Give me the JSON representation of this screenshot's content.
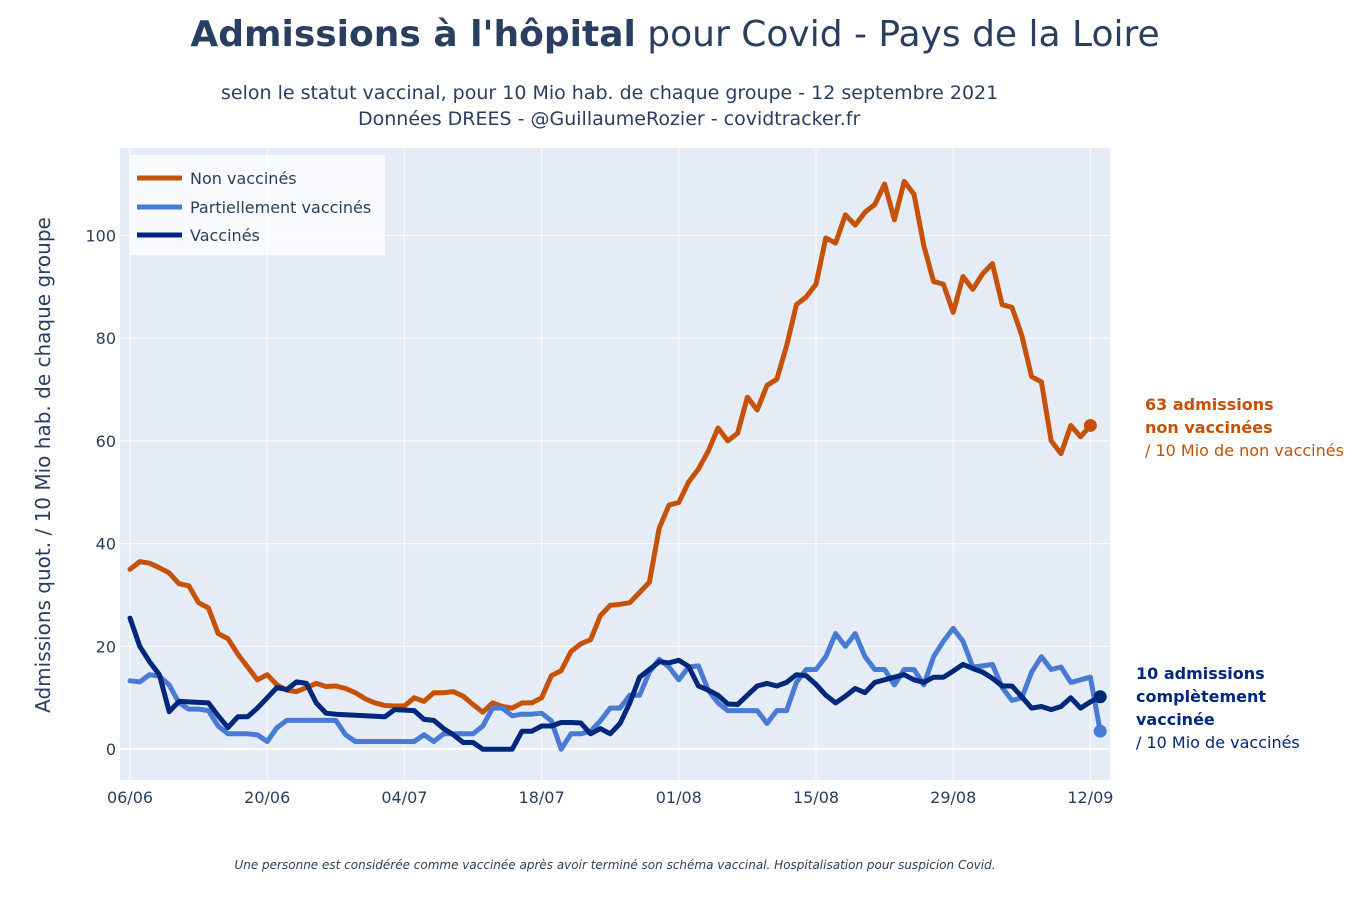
{
  "header": {
    "title_bold": "Admissions à l'hôpital",
    "title_rest": " pour Covid - Pays de la Loire",
    "subtitle_line1": "selon le statut vaccinal, pour 10 Mio hab. de chaque groupe - 12 septembre 2021",
    "subtitle_line2": "Données DREES - @GuillaumeRozier - covidtracker.fr"
  },
  "footnote": "Une personne est considérée comme vaccinée après avoir terminé son schéma vaccinal. Hospitalisation pour suspicion Covid.",
  "annotations": {
    "unvax_line1": "63 admissions",
    "unvax_line2": "non vaccinées",
    "unvax_line3": "/ 10 Mio de non vaccinés",
    "vax_line1": "10 admissions",
    "vax_line2": "complètement vaccinée",
    "vax_line3": "/ 10 Mio de vaccinés"
  },
  "colors": {
    "unvaccinated": "#c65108",
    "partial": "#4a7bd4",
    "vaccinated": "#00287a",
    "plot_bg": "#e5ecf6"
  },
  "chart_data": {
    "type": "line",
    "title": "Admissions à l'hôpital pour Covid - Pays de la Loire",
    "ylabel": "Admissions quot. / 10 Mio hab. de chaque groupe",
    "xlabel": "",
    "x_start": "2021-06-06",
    "x_tick_labels": [
      "06/06",
      "20/06",
      "04/07",
      "18/07",
      "01/08",
      "15/08",
      "29/08",
      "12/09"
    ],
    "y_ticks": [
      0,
      20,
      40,
      60,
      80,
      100
    ],
    "ylim": [
      -6,
      117
    ],
    "grid": true,
    "legend_position": "top-left",
    "series": [
      {
        "name": "Non vaccinés",
        "color": "#c65108",
        "values": [
          35,
          36.5,
          36.2,
          35.3,
          34.3,
          32.2,
          31.8,
          28.5,
          27.5,
          22.5,
          21.5,
          18.5,
          16,
          13.5,
          14.5,
          12.5,
          11.5,
          11.2,
          12,
          12.8,
          12.2,
          12.3,
          11.8,
          11,
          9.8,
          9,
          8.5,
          8.4,
          8.4,
          10,
          9.3,
          11,
          11,
          11.2,
          10.3,
          8.7,
          7.2,
          9,
          8.3,
          8,
          9,
          9,
          10,
          14.3,
          15.3,
          19,
          20.5,
          21.3,
          26,
          28,
          28.2,
          28.5,
          30.5,
          32.5,
          43,
          47.5,
          48,
          52,
          54.5,
          58,
          62.5,
          60,
          61.5,
          68.5,
          66,
          70.8,
          72,
          78.5,
          86.5,
          88,
          90.5,
          99.5,
          98.5,
          104,
          102,
          104.5,
          106,
          110,
          103,
          110.5,
          108,
          98,
          91,
          90.5,
          85,
          92,
          89.5,
          92.5,
          94.5,
          86.5,
          86,
          80.5,
          72.5,
          71.5,
          60,
          57.5,
          63,
          60.8,
          63
        ]
      },
      {
        "name": "Partiellement vaccinés",
        "color": "#4a7bd4",
        "values": [
          13.3,
          13.1,
          14.5,
          14.2,
          12.5,
          9,
          7.8,
          7.8,
          7.5,
          4.5,
          3,
          3,
          3,
          2.8,
          1.5,
          4.2,
          5.6,
          5.6,
          5.6,
          5.6,
          5.6,
          5.6,
          2.8,
          1.5,
          1.5,
          1.5,
          1.5,
          1.5,
          1.5,
          1.5,
          2.8,
          1.5,
          3,
          3,
          3,
          3,
          4.5,
          8,
          8,
          6.5,
          6.8,
          6.8,
          7,
          5.5,
          0,
          3,
          3,
          3.5,
          5.5,
          8,
          8,
          10.5,
          10.5,
          15,
          17.5,
          16,
          13.5,
          16,
          16.2,
          11.5,
          9,
          7.5,
          7.5,
          7.5,
          7.5,
          5,
          7.5,
          7.5,
          13,
          15.5,
          15.5,
          18,
          22.5,
          20,
          22.5,
          18,
          15.5,
          15.5,
          12.5,
          15.5,
          15.5,
          12.5,
          18,
          21,
          23.5,
          21,
          16,
          16.2,
          16.5,
          12,
          9.5,
          10,
          15,
          18,
          15.5,
          16,
          13,
          13.5,
          14,
          3.5
        ]
      },
      {
        "name": "Vaccinés",
        "color": "#00287a",
        "values": [
          25.5,
          20,
          17,
          14.5,
          7.3,
          9.3,
          9.2,
          9.1,
          9,
          6.5,
          4.2,
          6.3,
          6.3,
          8,
          10,
          12,
          11.6,
          13.1,
          12.8,
          9,
          7,
          6.8,
          6.7,
          6.6,
          6.5,
          6.4,
          6.3,
          7.7,
          7.6,
          7.5,
          5.8,
          5.6,
          4,
          2.8,
          1.3,
          1.3,
          0,
          0,
          0,
          0,
          3.5,
          3.5,
          4.5,
          4.5,
          5.2,
          5.2,
          5.1,
          3,
          4,
          3,
          5,
          9,
          14,
          15.5,
          17,
          16.8,
          17.3,
          16.1,
          12.3,
          11.5,
          10.5,
          8.8,
          8.7,
          10.5,
          12.3,
          12.8,
          12.3,
          13,
          14.5,
          14.3,
          12.6,
          10.5,
          9,
          10.3,
          11.8,
          11,
          13,
          13.5,
          14,
          14.5,
          13.5,
          13,
          14,
          14,
          15.2,
          16.5,
          15.7,
          15,
          13.8,
          12.3,
          12.3,
          10.2,
          8,
          8.3,
          7.7,
          8.3,
          10,
          8,
          9.2,
          10.2
        ]
      }
    ],
    "end_markers": [
      {
        "series": "Non vaccinés",
        "value": 63
      },
      {
        "series": "Partiellement vaccinés",
        "value": 3.5
      },
      {
        "series": "Vaccinés",
        "value": 10.2
      }
    ]
  }
}
